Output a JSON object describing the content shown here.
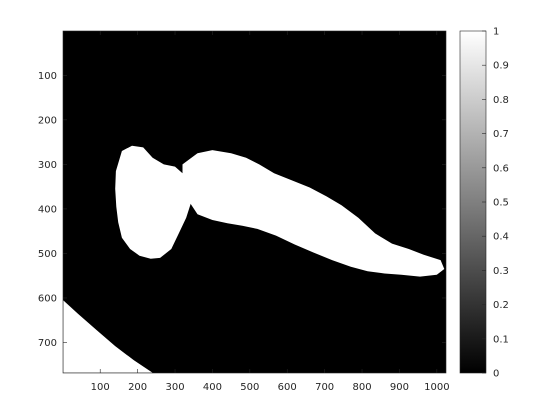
{
  "chart_data": {
    "type": "heatmap",
    "title": "",
    "xlabel": "",
    "ylabel": "",
    "colormap": "gray",
    "image_width": 1024,
    "image_height": 768,
    "xlim": [
      0.5,
      1024.5
    ],
    "ylim": [
      0.5,
      768.5
    ],
    "y_direction": "reverse",
    "x_ticks": [
      100,
      200,
      300,
      400,
      500,
      600,
      700,
      800,
      900,
      1000
    ],
    "x_tick_labels": [
      "100",
      "200",
      "300",
      "400",
      "500",
      "600",
      "700",
      "800",
      "900",
      "1000"
    ],
    "y_ticks": [
      100,
      200,
      300,
      400,
      500,
      600,
      700
    ],
    "y_tick_labels": [
      "100",
      "200",
      "300",
      "400",
      "500",
      "600",
      "700"
    ],
    "colorbar": {
      "range": [
        0,
        1
      ],
      "ticks": [
        0,
        0.1,
        0.2,
        0.3,
        0.4,
        0.5,
        0.6,
        0.7,
        0.8,
        0.9,
        1
      ],
      "tick_labels": [
        "0",
        "0.1",
        "0.2",
        "0.3",
        "0.4",
        "0.5",
        "0.6",
        "0.7",
        "0.8",
        "0.9",
        "1"
      ]
    },
    "values_present": [
      0,
      1
    ],
    "background_value": 0,
    "regions_value_1": [
      {
        "name": "jellyfish-bell",
        "outline": [
          [
            158,
            270
          ],
          [
            185,
            258
          ],
          [
            215,
            262
          ],
          [
            240,
            285
          ],
          [
            270,
            300
          ],
          [
            300,
            305
          ],
          [
            320,
            320
          ],
          [
            340,
            345
          ],
          [
            345,
            380
          ],
          [
            330,
            420
          ],
          [
            310,
            455
          ],
          [
            290,
            490
          ],
          [
            260,
            510
          ],
          [
            235,
            512
          ],
          [
            205,
            505
          ],
          [
            180,
            490
          ],
          [
            158,
            465
          ],
          [
            148,
            430
          ],
          [
            143,
            395
          ],
          [
            140,
            355
          ],
          [
            142,
            315
          ]
        ]
      },
      {
        "name": "jellyfish-tentacles",
        "outline": [
          [
            320,
            300
          ],
          [
            360,
            275
          ],
          [
            400,
            268
          ],
          [
            450,
            275
          ],
          [
            490,
            285
          ],
          [
            525,
            300
          ],
          [
            565,
            320
          ],
          [
            610,
            335
          ],
          [
            660,
            352
          ],
          [
            705,
            372
          ],
          [
            745,
            392
          ],
          [
            790,
            420
          ],
          [
            835,
            455
          ],
          [
            880,
            478
          ],
          [
            925,
            490
          ],
          [
            965,
            503
          ],
          [
            1010,
            515
          ],
          [
            1020,
            535
          ],
          [
            1000,
            548
          ],
          [
            955,
            552
          ],
          [
            905,
            548
          ],
          [
            860,
            545
          ],
          [
            815,
            540
          ],
          [
            770,
            530
          ],
          [
            720,
            515
          ],
          [
            670,
            498
          ],
          [
            620,
            480
          ],
          [
            570,
            460
          ],
          [
            520,
            445
          ],
          [
            480,
            438
          ],
          [
            440,
            432
          ],
          [
            400,
            425
          ],
          [
            360,
            412
          ],
          [
            335,
            380
          ],
          [
            320,
            340
          ]
        ]
      },
      {
        "name": "bottom-left-corner",
        "outline": [
          [
            1,
            605
          ],
          [
            40,
            635
          ],
          [
            90,
            672
          ],
          [
            140,
            708
          ],
          [
            190,
            740
          ],
          [
            240,
            768
          ],
          [
            1,
            768
          ]
        ]
      }
    ]
  }
}
